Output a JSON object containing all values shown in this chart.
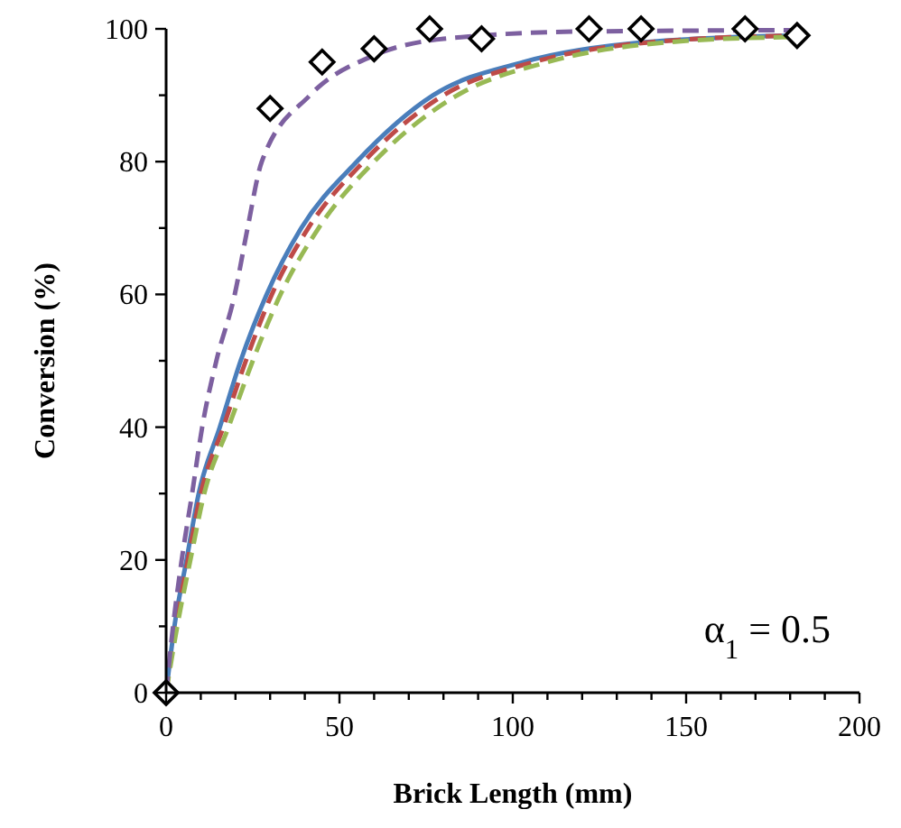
{
  "chart_data": {
    "type": "line",
    "xlabel": "Brick Length (mm)",
    "ylabel": "Conversion (%)",
    "xlim": [
      0,
      200
    ],
    "ylim": [
      0,
      100
    ],
    "xticks": [
      0,
      {
        "value": 10,
        "label": null
      },
      {
        "value": 20,
        "label": null
      },
      {
        "value": 30,
        "label": null
      },
      {
        "value": 40,
        "label": null
      },
      50,
      {
        "value": 60,
        "label": null
      },
      {
        "value": 70,
        "label": null
      },
      {
        "value": 80,
        "label": null
      },
      {
        "value": 90,
        "label": null
      },
      100,
      {
        "value": 110,
        "label": null
      },
      {
        "value": 120,
        "label": null
      },
      {
        "value": 130,
        "label": null
      },
      {
        "value": 140,
        "label": null
      },
      150,
      {
        "value": 160,
        "label": null
      },
      {
        "value": 170,
        "label": null
      },
      {
        "value": 180,
        "label": null
      },
      {
        "value": 190,
        "label": null
      },
      200
    ],
    "yticks": [
      0,
      {
        "value": 10,
        "label": null
      },
      20,
      {
        "value": 30,
        "label": null
      },
      40,
      {
        "value": 50,
        "label": null
      },
      60,
      {
        "value": 70,
        "label": null
      },
      80,
      {
        "value": 90,
        "label": null
      },
      100
    ],
    "grid": false,
    "marker": "none",
    "annotations": [
      "α$_{1}$ = 0.5"
    ],
    "series": [
      {
        "color": "#4a7ebb",
        "line_style": "solid",
        "x": [
          0,
          2.4,
          5.9,
          9.4,
          15.5,
          21.5,
          29,
          39,
          55,
          77,
          103,
          138,
          182
        ],
        "values": [
          0,
          10,
          20,
          30,
          40,
          50,
          60,
          70,
          80,
          90,
          95,
          98,
          99
        ]
      },
      {
        "color": "#be4b48",
        "line_style": "dashed",
        "x": [
          0,
          2.7,
          6.3,
          10,
          16.5,
          23,
          30.5,
          41,
          57,
          80,
          106,
          140,
          182
        ],
        "values": [
          0,
          10,
          20,
          30,
          40,
          50,
          60,
          70,
          80,
          90,
          95,
          98,
          99
        ]
      },
      {
        "color": "#98b954",
        "line_style": "dashed",
        "x": [
          0,
          3.2,
          7,
          11,
          18,
          25,
          33,
          44,
          60,
          84,
          110,
          145,
          182
        ],
        "values": [
          0,
          10,
          20,
          30,
          40,
          50,
          60,
          70,
          80,
          90,
          95,
          98,
          98.8
        ]
      },
      {
        "color": "#7d60a0",
        "line_style": "dashed",
        "x": [
          0,
          2,
          4.5,
          7.5,
          10.4,
          14.5,
          19.8,
          23.5,
          27.6,
          41.5,
          60,
          80,
          120,
          182
        ],
        "values": [
          0,
          10,
          20,
          30,
          40,
          50,
          60,
          70,
          80,
          90,
          96,
          98.5,
          99.6,
          99.8
        ]
      },
      {
        "type": "scatter",
        "color": "#000000",
        "marker": "diamond",
        "x": [
          0,
          30,
          45,
          60,
          76,
          91,
          122,
          137,
          167,
          182
        ],
        "values": [
          0,
          88,
          95,
          97,
          100,
          98.5,
          100,
          100,
          100,
          99
        ]
      }
    ]
  }
}
